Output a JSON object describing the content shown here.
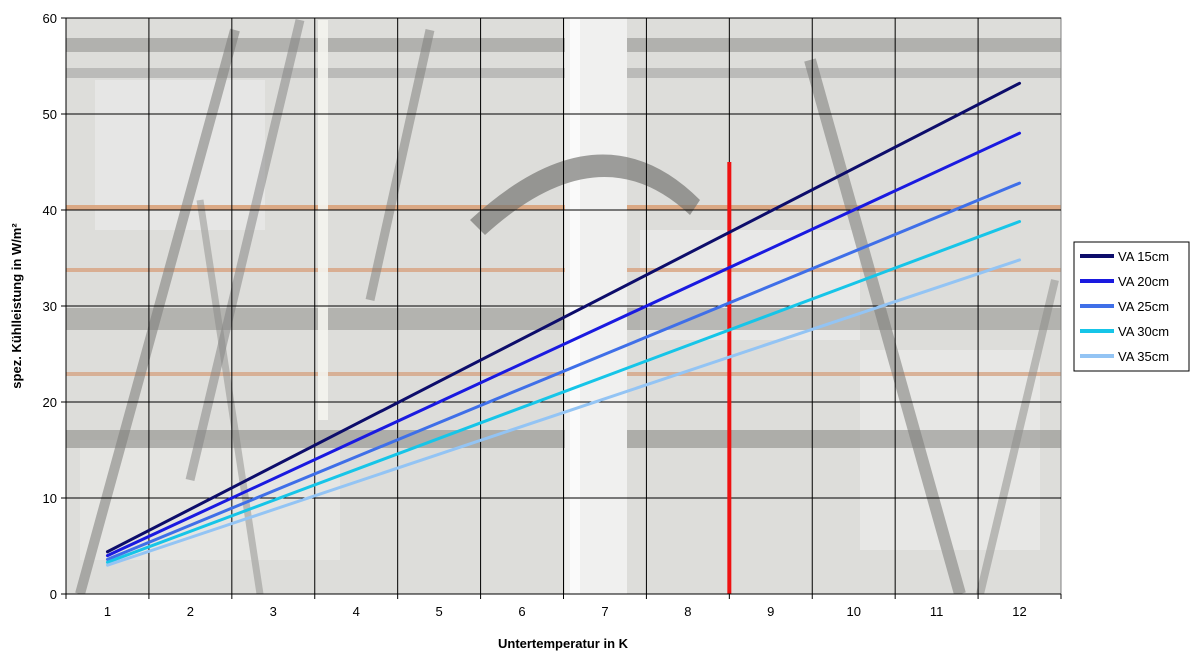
{
  "chart_data": {
    "type": "line",
    "xlabel": "Untertemperatur in K",
    "ylabel": "spez. Kühlleistung in W/m²",
    "xlim": [
      0.5,
      12.5
    ],
    "ylim": [
      0,
      60
    ],
    "xticks": [
      1,
      2,
      3,
      4,
      5,
      6,
      7,
      8,
      9,
      10,
      11,
      12
    ],
    "yticks": [
      0,
      10,
      20,
      30,
      40,
      50,
      60
    ],
    "grid": true,
    "legend_position": "right",
    "background": "photo of reinforcement steel mesh (rebar) on concrete",
    "marker_line": {
      "x": 8.5,
      "y_from": 0,
      "y_to": 45,
      "color": "#ee1111"
    },
    "series": [
      {
        "name": "VA 15cm",
        "color": "#0d0d6b",
        "x": [
          1,
          12
        ],
        "values": [
          4.4,
          53.2
        ]
      },
      {
        "name": "VA 20cm",
        "color": "#1a1ae0",
        "x": [
          1,
          12
        ],
        "values": [
          4.0,
          48.0
        ]
      },
      {
        "name": "VA 25cm",
        "color": "#3f6fe8",
        "x": [
          1,
          12
        ],
        "values": [
          3.6,
          42.8
        ]
      },
      {
        "name": "VA 30cm",
        "color": "#16c5e8",
        "x": [
          1,
          12
        ],
        "values": [
          3.3,
          38.8
        ]
      },
      {
        "name": "VA 35cm",
        "color": "#93c4f4",
        "x": [
          1,
          12
        ],
        "values": [
          3.0,
          34.8
        ]
      }
    ]
  }
}
